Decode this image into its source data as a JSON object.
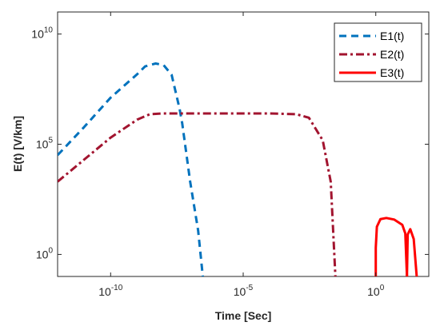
{
  "chart_data": {
    "type": "line",
    "xlabel": "Time [Sec]",
    "ylabel": "E(t) [V/km]",
    "xscale": "log",
    "yscale": "log",
    "xlim": [
      1e-12,
      100.0
    ],
    "ylim": [
      0.1,
      100000000000.0
    ],
    "x_ticks": [
      {
        "value": 1e-10,
        "base": "10",
        "exp": "-10"
      },
      {
        "value": 1e-05,
        "base": "10",
        "exp": "-5"
      },
      {
        "value": 1,
        "base": "10",
        "exp": "0"
      }
    ],
    "y_ticks": [
      {
        "value": 1,
        "base": "10",
        "exp": "0"
      },
      {
        "value": 100000.0,
        "base": "10",
        "exp": "5"
      },
      {
        "value": 10000000000.0,
        "base": "10",
        "exp": "10"
      }
    ],
    "grid": false,
    "legend": {
      "position": "top-right"
    },
    "series": [
      {
        "name": "E1(t)",
        "color": "#0072BD",
        "style": "dashed",
        "points": [
          [
            1e-12,
            32000.0
          ],
          [
            1e-11,
            600000.0
          ],
          [
            1e-10,
            13000000.0
          ],
          [
            1e-09,
            150000000.0
          ],
          [
            2e-09,
            340000000.0
          ],
          [
            5e-09,
            460000000.0
          ],
          [
            1e-08,
            390000000.0
          ],
          [
            2e-08,
            140000000.0
          ],
          [
            4e-08,
            4000000.0
          ],
          [
            5e-08,
            900000.0
          ],
          [
            1e-07,
            2000.0
          ],
          [
            2e-07,
            12
          ],
          [
            3e-07,
            0.1
          ]
        ]
      },
      {
        "name": "E2(t)",
        "color": "#A2142F",
        "style": "dashdot",
        "points": [
          [
            1e-12,
            2000.0
          ],
          [
            1e-11,
            20000.0
          ],
          [
            1e-10,
            200000.0
          ],
          [
            1e-09,
            1300000.0
          ],
          [
            3e-09,
            2300000.0
          ],
          [
            1e-08,
            2500000.0
          ],
          [
            0.0001,
            2500000.0
          ],
          [
            0.001,
            2300000.0
          ],
          [
            0.003,
            1600000.0
          ],
          [
            0.01,
            150000.0
          ],
          [
            0.02,
            2000.0
          ],
          [
            0.03,
            0.1
          ]
        ]
      },
      {
        "name": "E3(t)",
        "color": "#FF0000",
        "style": "solid",
        "segments": [
          [
            [
              1,
              0.1
            ],
            [
              1,
              2
            ],
            [
              1.1,
              18
            ],
            [
              1.5,
              40
            ],
            [
              2.5,
              45
            ],
            [
              5,
              38
            ],
            [
              10,
              22
            ],
            [
              13,
              9
            ],
            [
              15,
              0.1
            ]
          ],
          [
            [
              15,
              0.1
            ],
            [
              16,
              8
            ],
            [
              20,
              14
            ],
            [
              27,
              5
            ],
            [
              35,
              0.1
            ]
          ]
        ]
      }
    ]
  }
}
